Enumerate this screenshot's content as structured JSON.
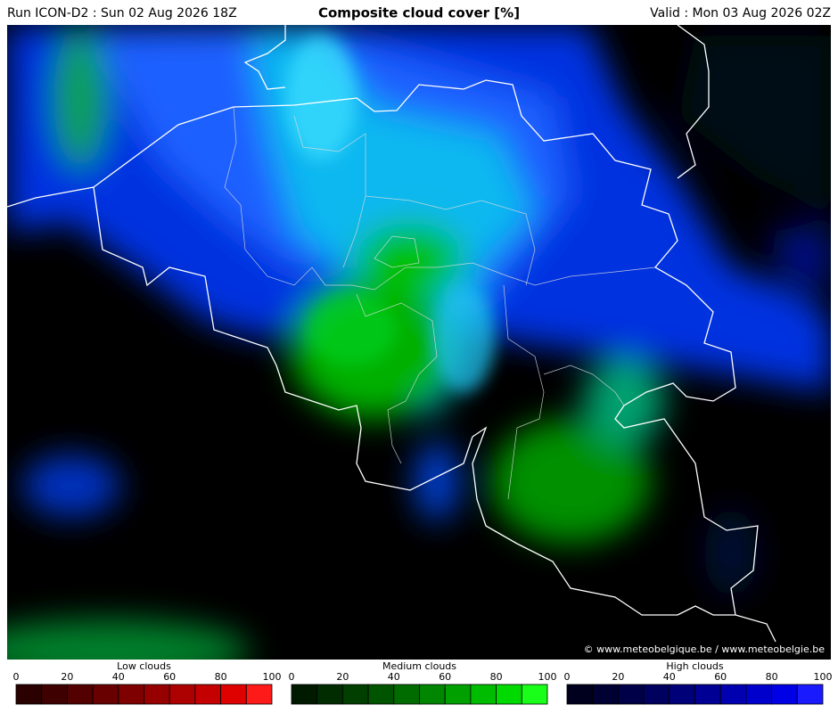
{
  "header": {
    "run": "Run ICON-D2 : Sun 02 Aug 2026 18Z",
    "title": "Composite cloud cover [%]",
    "valid": "Valid : Mon 03 Aug 2026 02Z"
  },
  "copyright": "© www.meteobelgique.be / www.meteobelgie.be",
  "legends": [
    {
      "title": "Low clouds",
      "ticks": [
        0,
        20,
        40,
        60,
        80,
        100
      ],
      "colors": [
        "#2a0000",
        "#3e0000",
        "#530000",
        "#680000",
        "#7e0000",
        "#960000",
        "#ad0000",
        "#c50000",
        "#df0000",
        "#ff1a1a"
      ]
    },
    {
      "title": "Medium clouds",
      "ticks": [
        0,
        20,
        40,
        60,
        80,
        100
      ],
      "colors": [
        "#001a00",
        "#002c00",
        "#003f00",
        "#005400",
        "#006c00",
        "#008600",
        "#00a000",
        "#00bc00",
        "#00da00",
        "#1aff1a"
      ]
    },
    {
      "title": "High clouds",
      "ticks": [
        0,
        20,
        40,
        60,
        80,
        100
      ],
      "colors": [
        "#00001e",
        "#000032",
        "#000048",
        "#00005e",
        "#000078",
        "#000094",
        "#0000b0",
        "#0000cc",
        "#0000e6",
        "#1a1aff"
      ]
    }
  ]
}
